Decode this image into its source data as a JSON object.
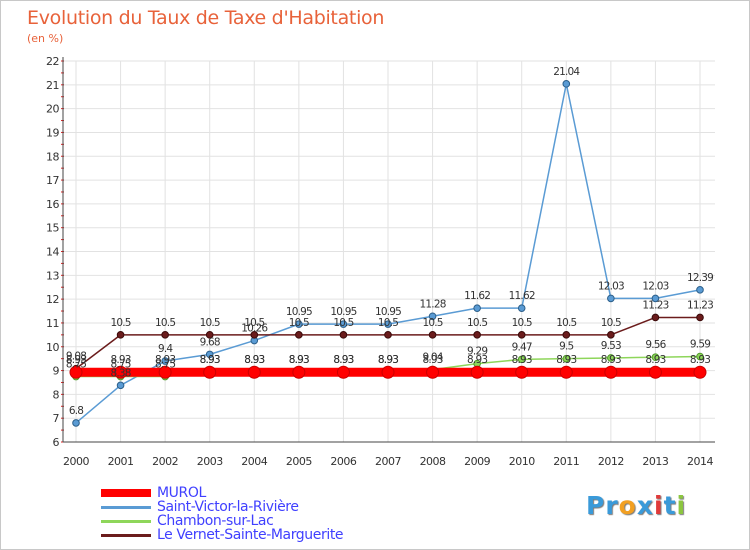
{
  "title": "Evolution du Taux de Taxe d'Habitation",
  "subtitle": "(en %)",
  "logo": {
    "letters": [
      "P",
      "r",
      "o",
      "x",
      "i",
      "t",
      "i"
    ],
    "colors": [
      "#3a9ad9",
      "#3a9ad9",
      "#f2a022",
      "#3a9ad9",
      "#e03a3a",
      "#3a9ad9",
      "#8cc63f"
    ]
  },
  "chart_data": {
    "type": "line",
    "title": "Evolution du Taux de Taxe d'Habitation",
    "ylabel": "(en %)",
    "xlabel": "",
    "ylim": [
      6,
      22
    ],
    "yticks": [
      6,
      7,
      8,
      9,
      10,
      11,
      12,
      13,
      14,
      15,
      16,
      17,
      18,
      19,
      20,
      21,
      22
    ],
    "x": [
      "2000",
      "2001",
      "2002",
      "2003",
      "2004",
      "2005",
      "2006",
      "2007",
      "2008",
      "2009",
      "2010",
      "2011",
      "2012",
      "2013",
      "2014"
    ],
    "grid": true,
    "legend": "bottom-left",
    "series": [
      {
        "name": "MUROL",
        "color": "#ff0000",
        "values": [
          8.93,
          8.93,
          8.93,
          8.93,
          8.93,
          8.93,
          8.93,
          8.93,
          8.93,
          8.93,
          8.93,
          8.93,
          8.93,
          8.93,
          8.93
        ]
      },
      {
        "name": "Saint-Victor-la-Rivière",
        "color": "#5a9bd4",
        "values": [
          6.8,
          8.38,
          9.4,
          9.68,
          10.26,
          10.95,
          10.95,
          10.95,
          11.28,
          11.62,
          11.62,
          21.04,
          12.03,
          12.03,
          12.39
        ]
      },
      {
        "name": "Chambon-sur-Lac",
        "color": "#8ed65a",
        "values": [
          8.75,
          8.75,
          8.75,
          8.93,
          8.93,
          8.93,
          8.93,
          8.93,
          9.04,
          9.29,
          9.47,
          9.5,
          9.53,
          9.56,
          9.59
        ]
      },
      {
        "name": "Le Vernet-Sainte-Marguerite",
        "color": "#6b1c1c",
        "values": [
          9.08,
          10.5,
          10.5,
          10.5,
          10.5,
          10.5,
          10.5,
          10.5,
          10.5,
          10.5,
          10.5,
          10.5,
          10.5,
          11.23,
          11.23
        ]
      }
    ],
    "data_labels": [
      {
        "series": "Saint-Victor-la-Rivière",
        "labels": [
          "6.8",
          "8.38",
          "9.4",
          "9.68",
          "10.26",
          "10.95",
          "10.95",
          "10.95",
          "11.28",
          "11.62",
          "11.62",
          "21.04",
          "12.03",
          "12.03",
          "12.39"
        ]
      },
      {
        "series": "Le Vernet-Sainte-Marguerite",
        "labels": [
          "9.08",
          "10.5",
          "10.5",
          "10.5",
          "10.5",
          "10.5",
          "10.5",
          "10.5",
          "10.5",
          "10.5",
          "10.5",
          "10.5",
          "10.5",
          "11.23",
          "11.23"
        ]
      },
      {
        "series": "MUROL",
        "labels": [
          "8.93",
          "8.93",
          "8.93",
          "8.93",
          "8.93",
          "8.93",
          "8.93",
          "8.93",
          "8.93",
          "8.93",
          "8.93",
          "8.93",
          "8.93",
          "8.93",
          "8.93"
        ]
      },
      {
        "series": "Chambon-sur-Lac",
        "labels": [
          "8.75",
          "8.75",
          "8.75",
          "8.93",
          "8.93",
          "8.93",
          "8.93",
          "8.93",
          "9.04",
          "9.29",
          "9.47",
          "9.5",
          "9.53",
          "9.56",
          "9.59"
        ]
      }
    ]
  }
}
